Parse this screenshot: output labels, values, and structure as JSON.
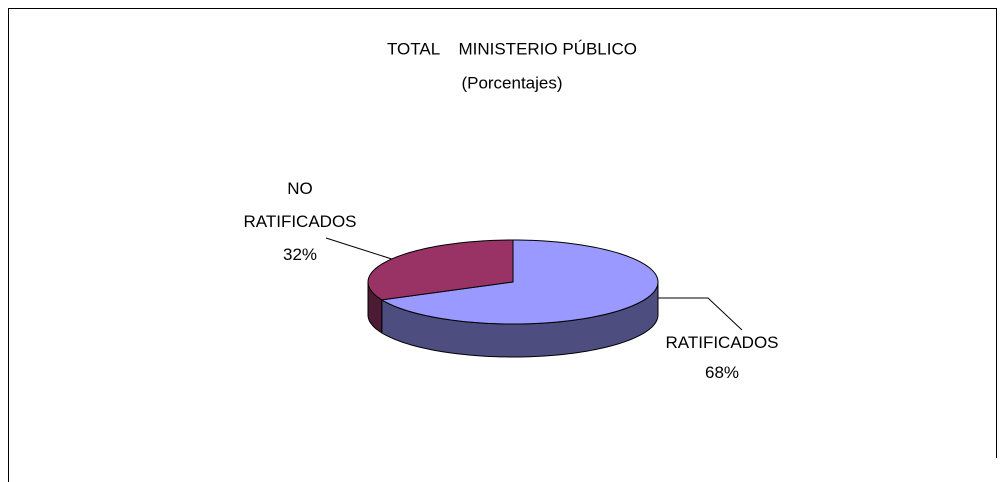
{
  "chart_data": {
    "type": "pie3d",
    "title": "TOTAL    MINISTERIO PÚBLICO",
    "subtitle": "(Porcentajes)",
    "categories": [
      "RATIFICADOS",
      "NO RATIFICADOS"
    ],
    "values": [
      68,
      32
    ],
    "value_labels": [
      "68%",
      "32%"
    ],
    "colors": [
      "#9999ff",
      "#993366"
    ]
  }
}
